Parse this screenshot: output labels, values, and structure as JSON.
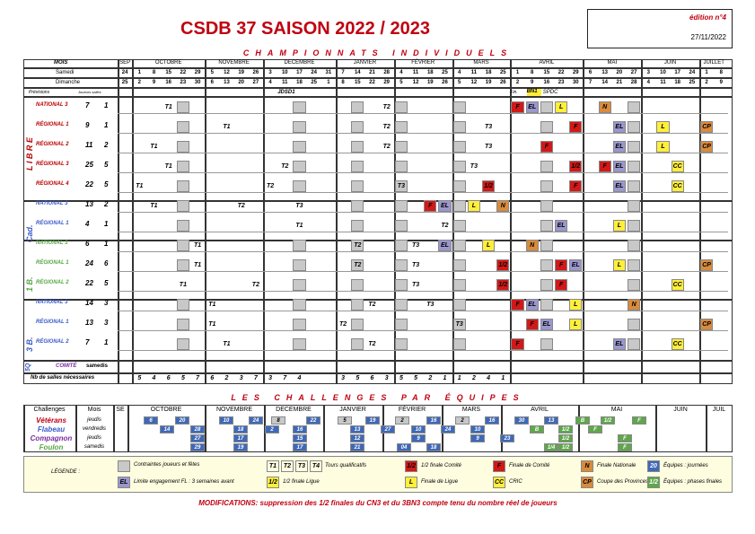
{
  "title": "CSDB 37  SAISON 2022 / 2023",
  "edition": "édition n°4",
  "date": "27/11/2022",
  "section1": "CHAMPIONNATS   INDIVIDUELS",
  "section2": "LES   CHALLENGES   PAR   ÉQUIPES",
  "header": {
    "mois": "MOIS",
    "samedi": "Samedi",
    "dimanche": "Dimanche",
    "previsions": "Prévisions",
    "joueurs_salles": "Joueurs salles",
    "months": [
      "SEP",
      "OCTOBRE",
      "NOVEMBRE",
      "DECEMBRE",
      "JANVIER",
      "FÉVRIER",
      "MARS",
      "AVRIL",
      "MAI",
      "JUIN",
      "JUILLET"
    ],
    "sat": [
      "24",
      "1",
      "8",
      "15",
      "22",
      "29",
      "5",
      "12",
      "19",
      "26",
      "3",
      "10",
      "17",
      "24",
      "31",
      "7",
      "14",
      "21",
      "28",
      "4",
      "11",
      "18",
      "25",
      "4",
      "11",
      "18",
      "25",
      "1",
      "8",
      "15",
      "22",
      "29",
      "6",
      "13",
      "20",
      "27",
      "3",
      "10",
      "17",
      "24",
      "1",
      "8"
    ],
    "sun": [
      "25",
      "2",
      "9",
      "16",
      "23",
      "30",
      "6",
      "13",
      "20",
      "27",
      "4",
      "11",
      "18",
      "25",
      "1",
      "8",
      "15",
      "22",
      "29",
      "5",
      "12",
      "19",
      "26",
      "5",
      "12",
      "19",
      "26",
      "2",
      "9",
      "16",
      "23",
      "30",
      "7",
      "14",
      "21",
      "28",
      "4",
      "11",
      "18",
      "25",
      "2",
      "9"
    ]
  },
  "prev_notes": {
    "jdsd": "JDSD1",
    "fin": "Fin.",
    "bn1": "BN1",
    "spdc": "SPDC"
  },
  "groups": {
    "libre": "L I B R E",
    "cad": "Cad.",
    "b1": "1 B.",
    "b3": "3 B.",
    "sq": "5Q"
  },
  "rows": [
    {
      "name": "NATIONAL 3",
      "j": "7",
      "s": "1"
    },
    {
      "name": "RÉGIONAL 1",
      "j": "9",
      "s": "1"
    },
    {
      "name": "RÉGIONAL 2",
      "j": "11",
      "s": "2"
    },
    {
      "name": "RÉGIONAL 3",
      "j": "25",
      "s": "5"
    },
    {
      "name": "RÉGIONAL 4",
      "j": "22",
      "s": "5"
    },
    {
      "name": "NATIONAL 3",
      "j": "13",
      "s": "2"
    },
    {
      "name": "RÉGIONAL 1",
      "j": "4",
      "s": "1"
    },
    {
      "name": "NATIONAL 3",
      "j": "6",
      "s": "1"
    },
    {
      "name": "RÉGIONAL 1",
      "j": "24",
      "s": "6"
    },
    {
      "name": "RÉGIONAL 2",
      "j": "22",
      "s": "5"
    },
    {
      "name": "NATIONAL 3",
      "j": "14",
      "s": "3"
    },
    {
      "name": "RÉGIONAL 1",
      "j": "13",
      "s": "3"
    },
    {
      "name": "RÉGIONAL 2",
      "j": "7",
      "s": "1"
    }
  ],
  "comite": {
    "name": "COMITÉ",
    "days": "samedis"
  },
  "salles": {
    "label": "Nb de salles nécessaires",
    "values": [
      "5",
      "4",
      "6",
      "5",
      "7",
      "6",
      "2",
      "3",
      "7",
      "3",
      "7",
      "4",
      "3",
      "5",
      "6",
      "3",
      "5",
      "5",
      "2",
      "1",
      "1",
      "2",
      "4",
      "1"
    ]
  },
  "challenges": {
    "head": [
      "Challenges",
      "Mois",
      "SE",
      "OCTOBRE",
      "NOVEMBRE",
      "DECEMBRE",
      "JANVIER",
      "FÉVRIER",
      "MARS",
      "AVRIL",
      "MAI",
      "JUIN",
      "JUIL"
    ],
    "teams": [
      {
        "name": "Vétérans",
        "days": "jeudis"
      },
      {
        "name": "Flabeau",
        "days": "vendredis"
      },
      {
        "name": "Compagnon",
        "days": "jeudis"
      },
      {
        "name": "Foulon",
        "days": "samedis"
      }
    ]
  },
  "legend": {
    "title": "LÉGENDE :",
    "gray": "Contraintes joueurs et fêtes",
    "el": "Limite engagement FL : 3 semaines avant",
    "t": "Tours qualificatifs",
    "half": "1/2 finale Ligue",
    "halfc": "1/2 finale Comité",
    "l": "Finale de Ligue",
    "f": "Finale de Comité",
    "cc": "CRIC",
    "n": "Finale Nationale",
    "cp": "Coupe des Provinces",
    "e20": "Équipes : journées",
    "e12": "Équipes : phases finales"
  },
  "modif": "MODIFICATIONS: suppression des 1/2 finales du CN3 et du 3BN3 compte tenu du nombre réel de joueurs",
  "colors": {
    "red": "#d31818",
    "yellow": "#ffef3a",
    "lavender": "#9a97cf",
    "orange": "#d98b3c",
    "blue": "#3f69b8",
    "green": "#5fa64c"
  }
}
